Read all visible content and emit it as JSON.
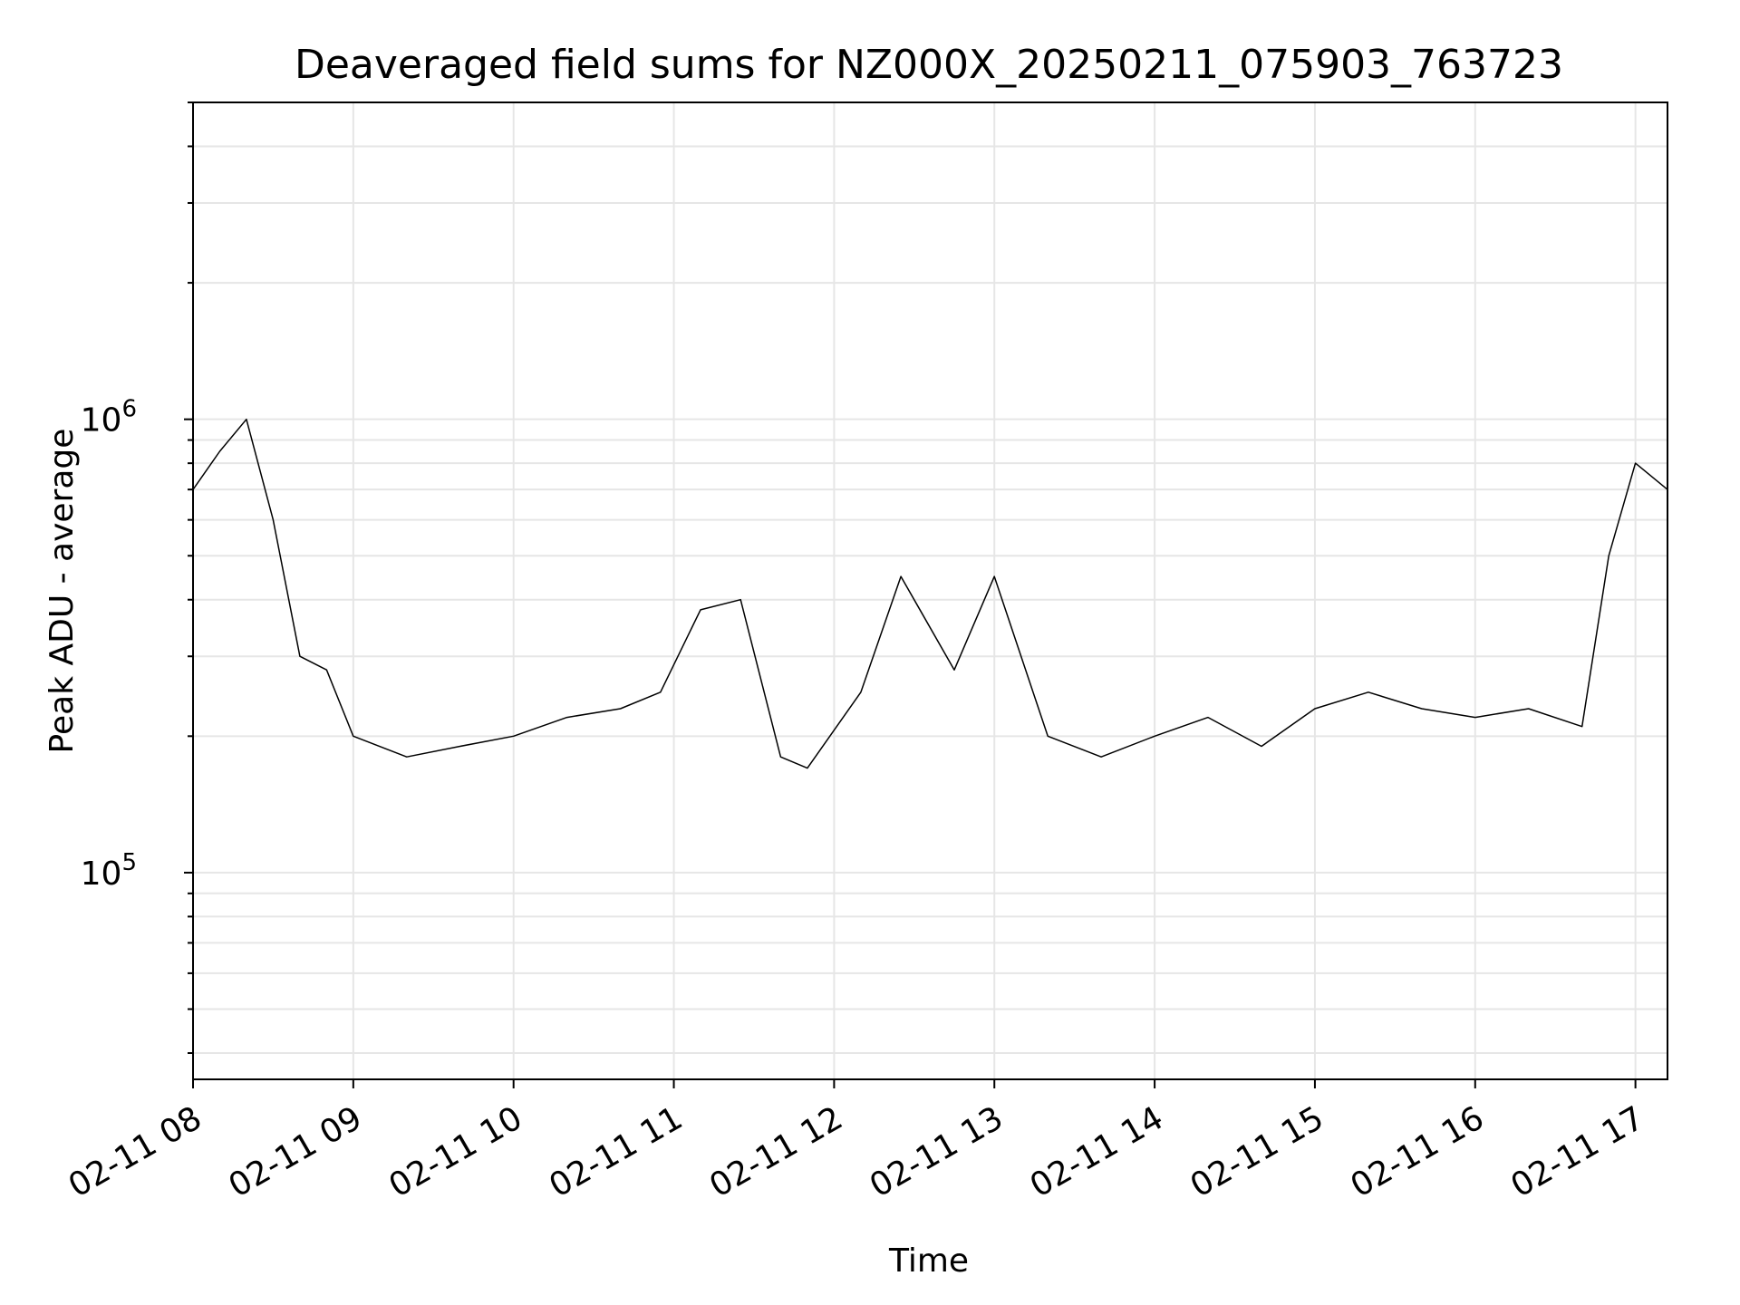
{
  "chart_data": {
    "type": "line",
    "title": "Deaveraged field sums for NZ000X_20250211_075903_763723",
    "xlabel": "Time",
    "ylabel": "Peak ADU - average",
    "x_axis": {
      "type": "time",
      "range": [
        "2025-02-11T08:00",
        "2025-02-11T17:12"
      ],
      "ticks": [
        "02-11 08",
        "02-11 09",
        "02-11 10",
        "02-11 11",
        "02-11 12",
        "02-11 13",
        "02-11 14",
        "02-11 15",
        "02-11 16",
        "02-11 17"
      ]
    },
    "y_axis": {
      "scale": "log",
      "range": [
        35000,
        5000000
      ],
      "major_ticks": [
        {
          "value": 100000,
          "base": "10",
          "exponent": "5"
        },
        {
          "value": 1000000,
          "base": "10",
          "exponent": "6"
        }
      ]
    },
    "grid": true,
    "line_color": "#000000",
    "series": [
      {
        "x": [
          "08:00",
          "08:10",
          "08:20",
          "08:30",
          "08:40",
          "08:50",
          "09:00",
          "09:20",
          "09:40",
          "10:00",
          "10:20",
          "10:40",
          "10:55",
          "11:10",
          "11:25",
          "11:40",
          "11:50",
          "12:10",
          "12:25",
          "12:45",
          "13:00",
          "13:20",
          "13:40",
          "14:00",
          "14:20",
          "14:40",
          "15:00",
          "15:20",
          "15:40",
          "16:00",
          "16:20",
          "16:40",
          "16:50",
          "17:00",
          "17:12"
        ],
        "y": [
          700000,
          850000,
          1000000,
          600000,
          300000,
          280000,
          200000,
          180000,
          190000,
          200000,
          220000,
          230000,
          250000,
          380000,
          400000,
          180000,
          170000,
          250000,
          450000,
          280000,
          450000,
          200000,
          180000,
          200000,
          220000,
          190000,
          230000,
          250000,
          230000,
          220000,
          230000,
          210000,
          500000,
          800000,
          700000
        ]
      }
    ]
  }
}
